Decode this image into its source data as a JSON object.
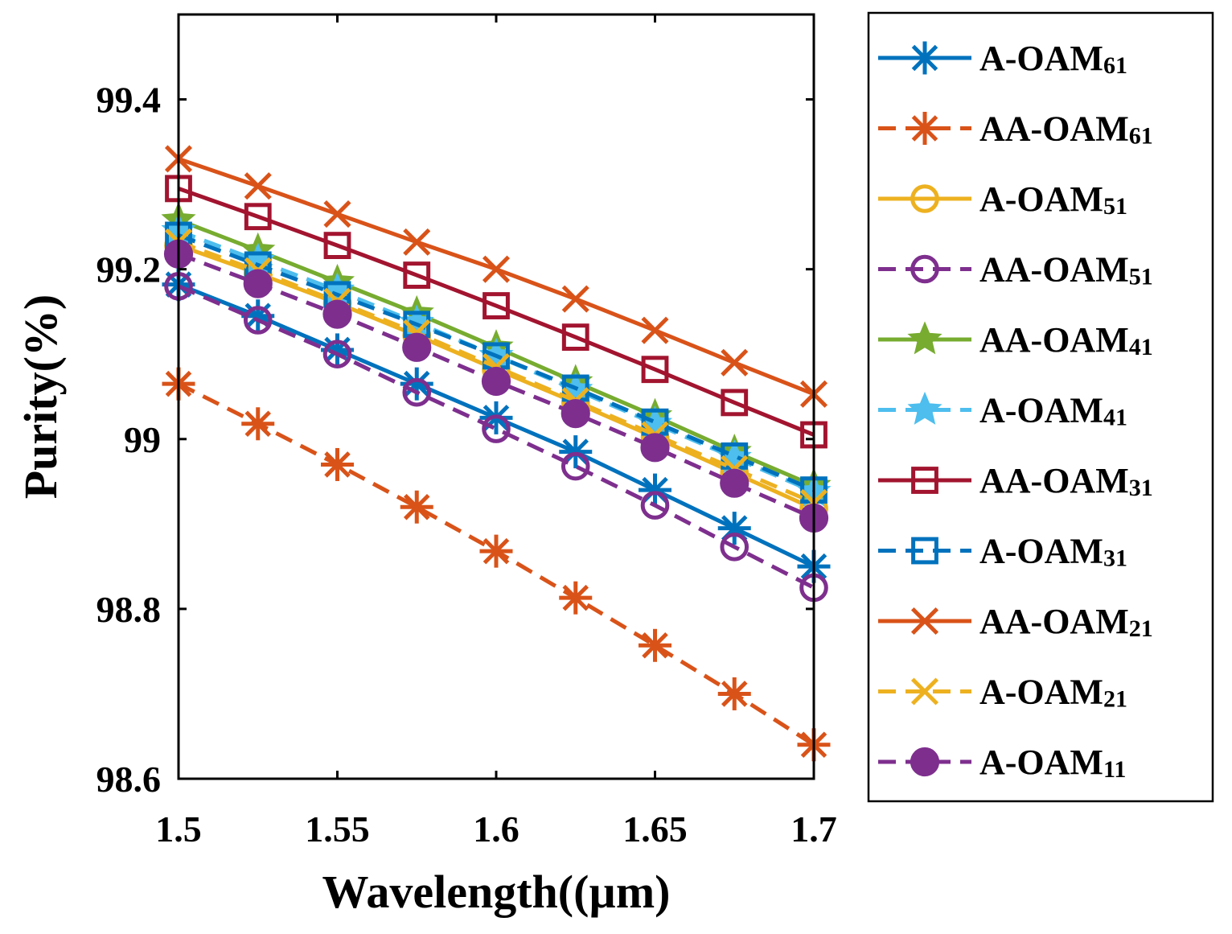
{
  "chart_data": {
    "type": "line",
    "title": "",
    "xlabel": "Wavelength((µm)",
    "ylabel": "Purity(%)",
    "xlim": [
      1.5,
      1.7
    ],
    "ylim": [
      98.6,
      99.5
    ],
    "x_ticks": [
      1.5,
      1.55,
      1.6,
      1.65,
      1.7
    ],
    "x_tick_labels": [
      "1.5",
      "1.55",
      "1.6",
      "1.65",
      "1.7"
    ],
    "y_ticks": [
      98.6,
      98.8,
      99,
      99.2,
      99.4
    ],
    "y_tick_labels": [
      "98.6",
      "98.8",
      "99",
      "99.2",
      "99.4"
    ],
    "x": [
      1.5,
      1.525,
      1.55,
      1.575,
      1.6,
      1.625,
      1.65,
      1.675,
      1.7
    ],
    "legend_position": "outside-right",
    "series": [
      {
        "name": "A-OAM",
        "subscript": "61",
        "color": "#0072BD",
        "dash": "solid",
        "marker": "asterisk",
        "values": [
          99.182,
          99.145,
          99.105,
          99.065,
          99.025,
          98.985,
          98.94,
          98.895,
          98.85
        ]
      },
      {
        "name": "AA-OAM",
        "subscript": "61",
        "color": "#D95319",
        "dash": "dashed",
        "marker": "asterisk",
        "values": [
          99.065,
          99.018,
          98.97,
          98.92,
          98.868,
          98.813,
          98.757,
          98.7,
          98.64
        ]
      },
      {
        "name": "A-OAM",
        "subscript": "51",
        "color": "#EDB120",
        "dash": "solid",
        "marker": "circle-open",
        "values": [
          99.228,
          99.195,
          99.16,
          99.122,
          99.082,
          99.043,
          99.002,
          98.96,
          98.918
        ]
      },
      {
        "name": "AA-OAM",
        "subscript": "51",
        "color": "#7E2F8E",
        "dash": "dashed",
        "marker": "circle-open",
        "values": [
          99.18,
          99.14,
          99.1,
          99.055,
          99.012,
          98.968,
          98.922,
          98.873,
          98.825
        ]
      },
      {
        "name": "AA-OAM",
        "subscript": "41",
        "color": "#77AC30",
        "dash": "solid",
        "marker": "star",
        "values": [
          99.258,
          99.222,
          99.185,
          99.148,
          99.108,
          99.067,
          99.027,
          98.985,
          98.945
        ]
      },
      {
        "name": "A-OAM",
        "subscript": "41",
        "color": "#4DBEEE",
        "dash": "dashed",
        "marker": "star",
        "values": [
          99.245,
          99.21,
          99.175,
          99.137,
          99.098,
          99.058,
          99.018,
          98.978,
          98.938
        ]
      },
      {
        "name": "AA-OAM",
        "subscript": "31",
        "color": "#A2142F",
        "dash": "solid",
        "marker": "square-open",
        "values": [
          99.295,
          99.262,
          99.228,
          99.193,
          99.157,
          99.12,
          99.082,
          99.043,
          99.005
        ]
      },
      {
        "name": "A-OAM",
        "subscript": "31",
        "color": "#0072BD",
        "dash": "dashed",
        "marker": "square-open",
        "values": [
          99.24,
          99.205,
          99.17,
          99.135,
          99.098,
          99.06,
          99.02,
          98.98,
          98.94
        ]
      },
      {
        "name": "AA-OAM",
        "subscript": "21",
        "color": "#D95319",
        "dash": "solid",
        "marker": "x",
        "values": [
          99.33,
          99.298,
          99.265,
          99.232,
          99.2,
          99.165,
          99.128,
          99.09,
          99.053
        ]
      },
      {
        "name": "A-OAM",
        "subscript": "21",
        "color": "#EDB120",
        "dash": "dashed",
        "marker": "x",
        "values": [
          99.232,
          99.198,
          99.162,
          99.125,
          99.085,
          99.045,
          99.005,
          98.965,
          98.925
        ]
      },
      {
        "name": "A-OAM",
        "subscript": "11",
        "color": "#7E2F8E",
        "dash": "dashed",
        "marker": "circle-filled",
        "values": [
          99.218,
          99.183,
          99.147,
          99.108,
          99.068,
          99.03,
          98.99,
          98.948,
          98.907
        ]
      }
    ]
  }
}
